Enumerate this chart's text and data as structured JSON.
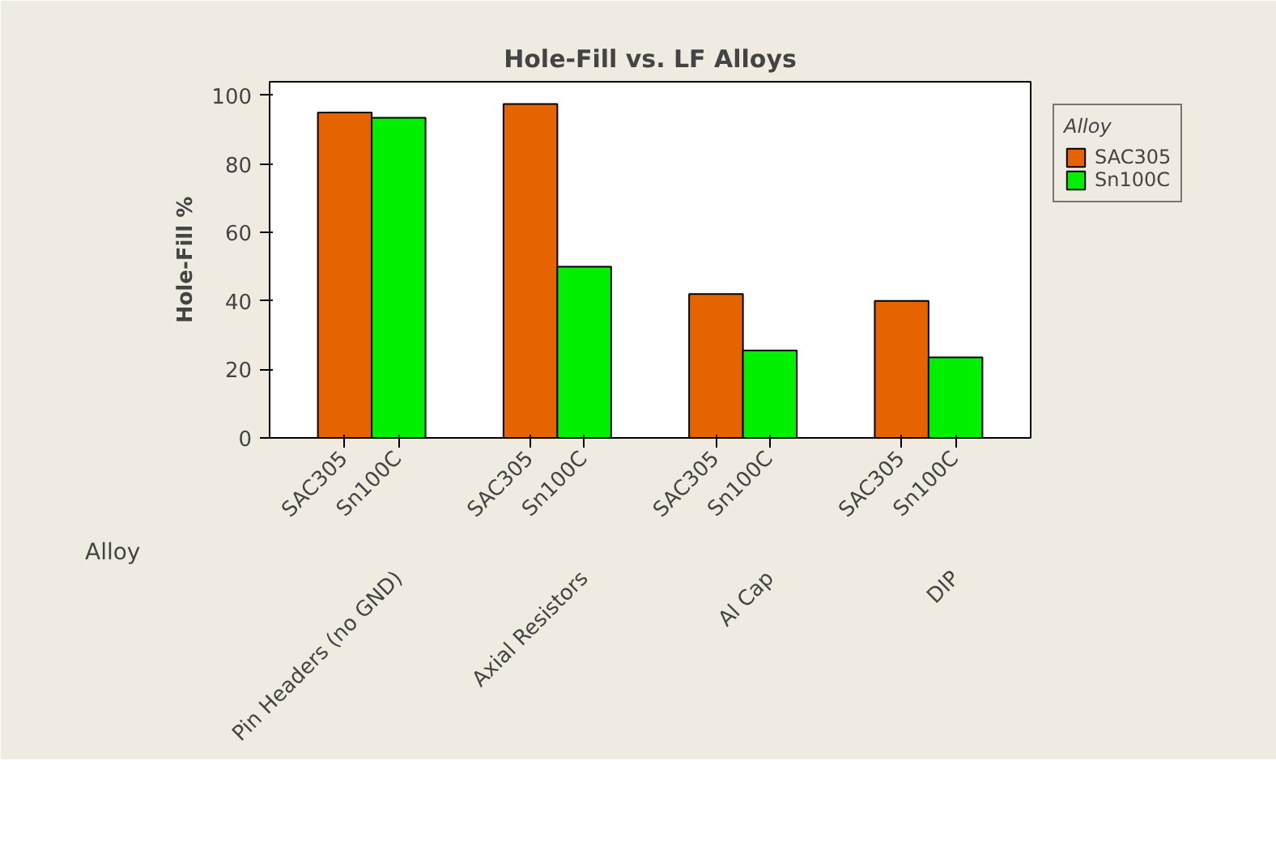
{
  "chart_data": {
    "type": "bar",
    "title": "Hole-Fill vs. LF Alloys",
    "xlabel": "Alloy",
    "ylabel": "Hole-Fill %",
    "legend_title": "Alloy",
    "legend": "right",
    "categories": [
      "Pin Headers (no GND)",
      "Axial Resistors",
      "Al Cap",
      "DIP"
    ],
    "series": [
      {
        "name": "SAC305",
        "color": "#e66400",
        "values": [
          95,
          97.5,
          42,
          40
        ]
      },
      {
        "name": "Sn100C",
        "color": "#00f000",
        "values": [
          93.5,
          50,
          25.5,
          23.5
        ]
      }
    ],
    "ylim": [
      0,
      104
    ],
    "yticks": [
      0,
      20,
      40,
      60,
      80,
      100
    ],
    "grid": false
  }
}
